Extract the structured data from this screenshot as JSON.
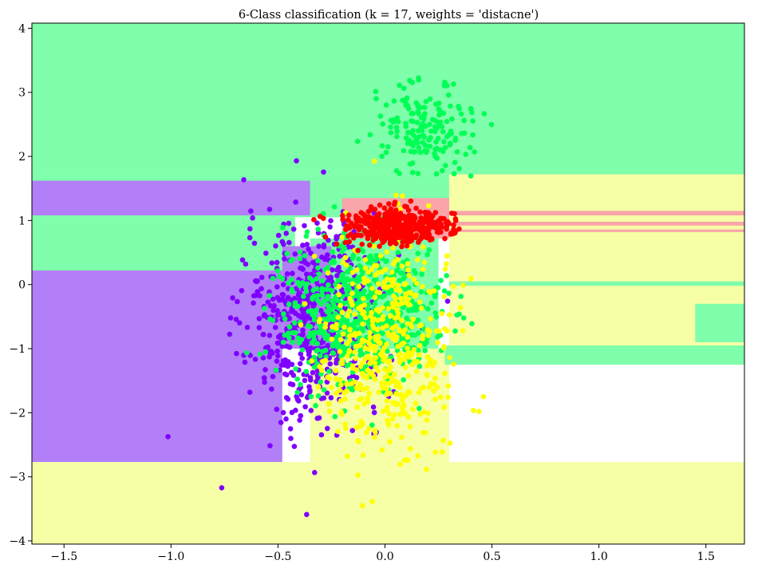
{
  "chart_data": {
    "type": "scatter",
    "title": "6-Class classification (k = 17, weights = 'distacne')",
    "xlabel": "",
    "ylabel": "",
    "xlim": [
      -1.65,
      1.68
    ],
    "ylim": [
      -4.05,
      4.08
    ],
    "xticks": [
      -1.5,
      -1.0,
      -0.5,
      0.0,
      0.5,
      1.0,
      1.5
    ],
    "yticks": [
      -4,
      -3,
      -2,
      -1,
      0,
      1,
      2,
      3,
      4
    ],
    "xtick_labels": [
      "−1.5",
      "−1.0",
      "−0.5",
      "0.0",
      "0.5",
      "1.0",
      "1.5"
    ],
    "ytick_labels": [
      "−4",
      "−3",
      "−2",
      "−1",
      "0",
      "1",
      "2",
      "3",
      "4"
    ],
    "grid": false,
    "legend": "none",
    "colors": {
      "region_green": "#7ffeab",
      "region_purple": "#b27ff8",
      "region_yellow": "#f6fea6",
      "region_pink": "#f9a5a9",
      "class_purple": "#7f00ff",
      "class_green": "#00ff55",
      "class_yellow": "#ffff00",
      "class_red": "#ff0000"
    },
    "regions": [
      {
        "class": "green",
        "x": [
          -1.65,
          1.68
        ],
        "y": [
          1.72,
          4.08
        ]
      },
      {
        "class": "green",
        "x": [
          -1.65,
          0.3
        ],
        "y": [
          1.05,
          1.72
        ]
      },
      {
        "class": "purple",
        "x": [
          -1.65,
          -0.35
        ],
        "y": [
          1.08,
          1.62
        ]
      },
      {
        "class": "green",
        "x": [
          -1.65,
          -0.42
        ],
        "y": [
          0.22,
          1.05
        ]
      },
      {
        "class": "purple",
        "x": [
          -1.65,
          -0.48
        ],
        "y": [
          -2.77,
          0.22
        ]
      },
      {
        "class": "yellow",
        "x": [
          -1.65,
          1.68
        ],
        "y": [
          -4.05,
          -2.77
        ]
      },
      {
        "class": "yellow",
        "x": [
          0.3,
          1.68
        ],
        "y": [
          -1.25,
          1.72
        ]
      },
      {
        "class": "yellow",
        "x": [
          -0.35,
          0.3
        ],
        "y": [
          -2.77,
          -1.0
        ]
      },
      {
        "class": "pink",
        "x": [
          -0.2,
          0.3
        ],
        "y": [
          0.72,
          1.35
        ]
      },
      {
        "class": "pink",
        "x": [
          0.3,
          1.68
        ],
        "y": [
          1.08,
          1.15
        ]
      },
      {
        "class": "pink",
        "x": [
          0.3,
          1.68
        ],
        "y": [
          0.92,
          0.98
        ]
      },
      {
        "class": "pink",
        "x": [
          0.3,
          1.68
        ],
        "y": [
          0.82,
          0.86
        ]
      },
      {
        "class": "green",
        "x": [
          0.28,
          1.68
        ],
        "y": [
          -1.25,
          -0.95
        ]
      },
      {
        "class": "green",
        "x": [
          0.3,
          1.68
        ],
        "y": [
          -0.02,
          0.05
        ]
      },
      {
        "class": "green",
        "x": [
          1.45,
          1.68
        ],
        "y": [
          -0.9,
          -0.3
        ]
      },
      {
        "class": "green",
        "x": [
          -0.35,
          0.25
        ],
        "y": [
          -1.0,
          0.72
        ]
      },
      {
        "class": "purple",
        "x": [
          -0.48,
          -0.25
        ],
        "y": [
          -1.0,
          0.6
        ]
      }
    ],
    "series": [
      {
        "class": "purple",
        "center": [
          -0.33,
          -0.55
        ],
        "spread": [
          0.16,
          0.75
        ],
        "count": 620
      },
      {
        "class": "green",
        "center": [
          -0.12,
          -0.45
        ],
        "spread": [
          0.18,
          0.55
        ],
        "count": 640
      },
      {
        "class": "green",
        "center": [
          0.18,
          2.45
        ],
        "spread": [
          0.12,
          0.35
        ],
        "count": 170
      },
      {
        "class": "yellow",
        "center": [
          0.02,
          -0.9
        ],
        "spread": [
          0.15,
          0.85
        ],
        "count": 480
      },
      {
        "class": "red",
        "center": [
          0.05,
          0.9
        ],
        "spread": [
          0.12,
          0.14
        ],
        "count": 420
      }
    ]
  }
}
